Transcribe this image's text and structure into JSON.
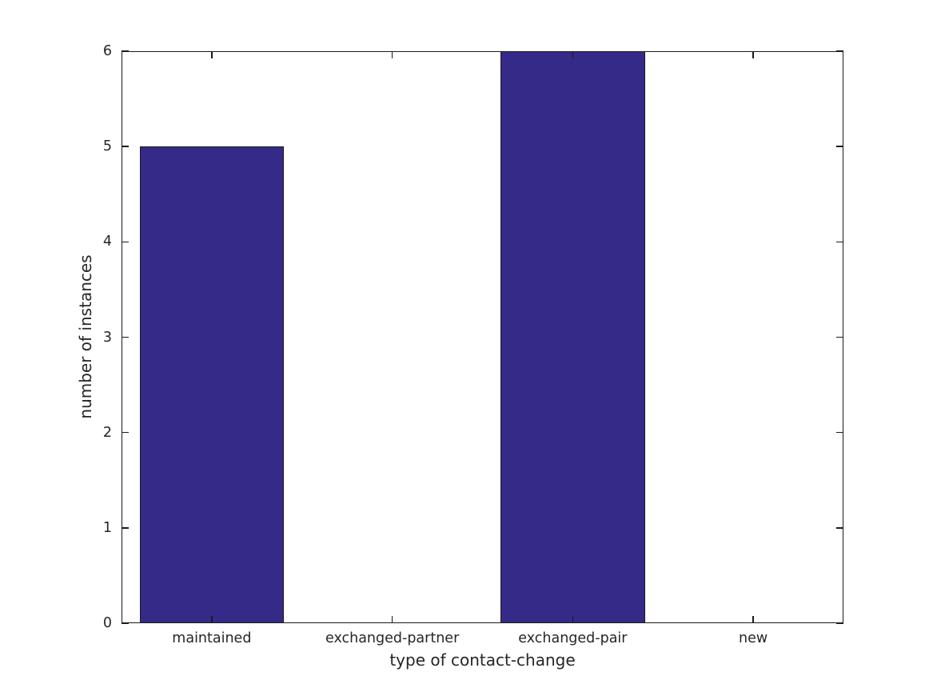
{
  "chart_data": {
    "type": "bar",
    "title": "",
    "categories": [
      "maintained",
      "exchanged-partner",
      "exchanged-pair",
      "new"
    ],
    "values": [
      5,
      0,
      6,
      0
    ],
    "xlabel": "type of contact-change",
    "ylabel": "number of instances",
    "ylim": [
      0,
      6
    ],
    "yticks": [
      0,
      1,
      2,
      3,
      4,
      5,
      6
    ],
    "grid": false,
    "legend": null,
    "box": "ticks mirrored inward on all four sides",
    "bar_width_fraction": 0.8,
    "colors": {
      "bar_fill": "#352A87",
      "bar_edge": "#1a1a1a",
      "axis_line": "#1a1a1a",
      "text": "#262626",
      "background": "#ffffff"
    }
  }
}
